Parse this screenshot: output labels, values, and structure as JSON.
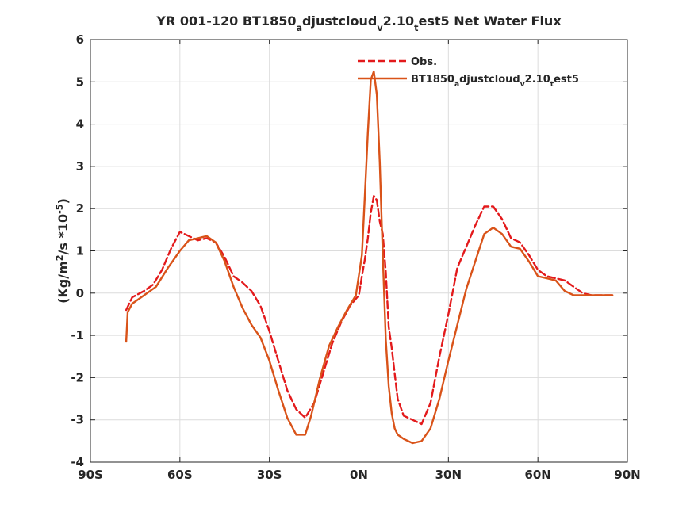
{
  "chart_data": {
    "type": "line",
    "title": "YR 001-120 BT1850adjustcloudv2.10test5  Net Water Flux",
    "title_parts": [
      {
        "text": "YR 001-120 BT1850",
        "sub": false
      },
      {
        "text": "a",
        "sub": true
      },
      {
        "text": "djustcloud",
        "sub": false
      },
      {
        "text": "v",
        "sub": true
      },
      {
        "text": "2.10",
        "sub": false
      },
      {
        "text": "t",
        "sub": true
      },
      {
        "text": "est5  Net Water Flux",
        "sub": false
      }
    ],
    "xlabel": "",
    "ylabel": "(Kg/m2/s *10-5)",
    "ylabel_parts": [
      {
        "text": "(Kg/m",
        "sup": false
      },
      {
        "text": "2",
        "sup": true
      },
      {
        "text": "/s *10",
        "sup": false
      },
      {
        "text": "-5",
        "sup": true
      },
      {
        "text": ")",
        "sup": false
      }
    ],
    "xlim": [
      -90,
      90
    ],
    "ylim": [
      -4,
      6
    ],
    "xticks": [
      -90,
      -60,
      -30,
      0,
      30,
      60,
      90
    ],
    "xtick_labels": [
      "90S",
      "60S",
      "30S",
      "0N",
      "30N",
      "60N",
      "90N"
    ],
    "yticks": [
      -4,
      -3,
      -2,
      -1,
      0,
      1,
      2,
      3,
      4,
      5,
      6
    ],
    "ytick_labels": [
      "-4",
      "-3",
      "-2",
      "-1",
      "0",
      "1",
      "2",
      "3",
      "4",
      "5",
      "6"
    ],
    "grid": true,
    "legend_position": "top-right",
    "series": [
      {
        "name": "Obs.",
        "color": "#e31a1c",
        "style": "dashed",
        "x": [
          -78,
          -76,
          -72,
          -69,
          -66,
          -63,
          -60,
          -57,
          -54,
          -51,
          -48,
          -45,
          -42,
          -39,
          -36,
          -33,
          -30,
          -27,
          -24,
          -21,
          -18,
          -15,
          -12,
          -9,
          -6,
          -3,
          0,
          1,
          2,
          3,
          4,
          5,
          6,
          7,
          8,
          9,
          10,
          11,
          12,
          13,
          15,
          18,
          21,
          24,
          27,
          30,
          33,
          36,
          39,
          42,
          45,
          48,
          51,
          54,
          57,
          60,
          63,
          66,
          69,
          72,
          75,
          78,
          81,
          85
        ],
        "y": [
          -0.4,
          -0.1,
          0.05,
          0.2,
          0.55,
          1.05,
          1.45,
          1.35,
          1.25,
          1.3,
          1.2,
          0.85,
          0.4,
          0.25,
          0.05,
          -0.3,
          -0.9,
          -1.6,
          -2.3,
          -2.75,
          -2.95,
          -2.6,
          -1.9,
          -1.2,
          -0.7,
          -0.3,
          -0.05,
          0.4,
          0.8,
          1.3,
          1.9,
          2.3,
          2.2,
          1.7,
          1.4,
          0.5,
          -0.8,
          -1.3,
          -1.9,
          -2.5,
          -2.9,
          -3.0,
          -3.1,
          -2.6,
          -1.5,
          -0.5,
          0.6,
          1.1,
          1.6,
          2.05,
          2.05,
          1.75,
          1.3,
          1.2,
          0.9,
          0.55,
          0.4,
          0.35,
          0.3,
          0.15,
          0.0,
          -0.05,
          -0.05,
          -0.05
        ]
      },
      {
        "name": "BT1850adjustcloudv2.10test5",
        "name_parts": [
          {
            "text": "BT1850",
            "sub": false
          },
          {
            "text": "a",
            "sub": true
          },
          {
            "text": "djustcloud",
            "sub": false
          },
          {
            "text": "v",
            "sub": true
          },
          {
            "text": "2.10",
            "sub": false
          },
          {
            "text": "t",
            "sub": true
          },
          {
            "text": "est5",
            "sub": false
          }
        ],
        "color": "#d95319",
        "style": "solid",
        "x": [
          -78,
          -77.5,
          -76,
          -72,
          -68,
          -64,
          -60,
          -57,
          -54,
          -51,
          -48,
          -45,
          -42,
          -39,
          -36,
          -33,
          -30,
          -27,
          -24,
          -21,
          -18,
          -16,
          -13,
          -10,
          -7,
          -4,
          -1,
          1,
          2,
          3,
          4,
          5,
          6,
          7,
          8,
          9,
          10,
          11,
          12,
          13,
          15,
          18,
          21,
          24,
          27,
          30,
          33,
          36,
          39,
          42,
          45,
          48,
          51,
          54,
          57,
          60,
          63,
          66,
          69,
          72,
          75,
          78,
          81,
          85
        ],
        "y": [
          -1.15,
          -0.45,
          -0.25,
          -0.05,
          0.15,
          0.6,
          1.0,
          1.25,
          1.3,
          1.35,
          1.2,
          0.75,
          0.15,
          -0.35,
          -0.75,
          -1.05,
          -1.6,
          -2.3,
          -2.95,
          -3.35,
          -3.35,
          -2.9,
          -2.0,
          -1.25,
          -0.8,
          -0.4,
          -0.05,
          0.9,
          2.3,
          3.8,
          5.05,
          5.25,
          4.7,
          3.1,
          0.9,
          -1.1,
          -2.2,
          -2.85,
          -3.2,
          -3.35,
          -3.45,
          -3.55,
          -3.5,
          -3.2,
          -2.5,
          -1.6,
          -0.75,
          0.1,
          0.75,
          1.4,
          1.55,
          1.4,
          1.1,
          1.05,
          0.75,
          0.4,
          0.35,
          0.3,
          0.05,
          -0.05,
          -0.05,
          -0.05,
          -0.05,
          -0.05
        ]
      }
    ]
  }
}
